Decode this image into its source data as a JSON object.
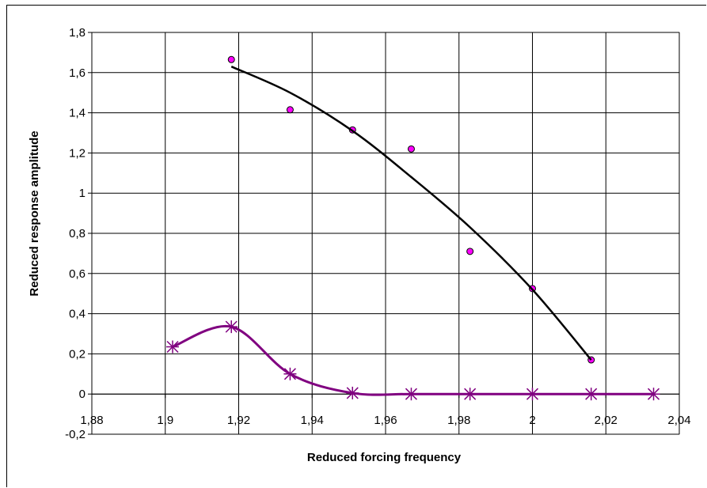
{
  "chart_data": {
    "type": "scatter",
    "xlabel": "Reduced forcing frequency",
    "ylabel": "Reduced response amplitude",
    "xlim": [
      1.88,
      2.04
    ],
    "ylim": [
      -0.2,
      1.8
    ],
    "xticks": [
      1.88,
      1.9,
      1.92,
      1.94,
      1.96,
      1.98,
      2,
      2.02,
      2.04
    ],
    "yticks": [
      -0.2,
      0,
      0.2,
      0.4,
      0.6,
      0.8,
      1,
      1.2,
      1.4,
      1.6,
      1.8
    ],
    "xtick_labels": [
      "1,88",
      "1,9",
      "1,92",
      "1,94",
      "1,96",
      "1,98",
      "2",
      "2,02",
      "2,04"
    ],
    "ytick_labels": [
      "-0,2",
      "0",
      "0,2",
      "0,4",
      "0,6",
      "0,8",
      "1",
      "1,2",
      "1,4",
      "1,6",
      "1,8"
    ],
    "grid": true,
    "legend": "none",
    "series": [
      {
        "marker": "circle",
        "color": "#ff00ff",
        "x": [
          1.918,
          1.934,
          1.951,
          1.967,
          1.983,
          2.0,
          2.016
        ],
        "y": [
          1.665,
          1.415,
          1.315,
          1.22,
          0.71,
          0.525,
          0.17
        ]
      },
      {
        "marker": "none",
        "line": "smooth",
        "color": "#000000",
        "x": [
          1.918,
          1.934,
          1.951,
          1.967,
          1.983,
          2.0,
          2.016
        ],
        "y": [
          1.63,
          1.5,
          1.31,
          1.08,
          0.83,
          0.52,
          0.17
        ]
      },
      {
        "marker": "asterisk",
        "line": "smooth",
        "color": "#800080",
        "x": [
          1.902,
          1.918,
          1.934,
          1.951,
          1.967,
          1.983,
          2.0,
          2.016,
          2.033
        ],
        "y": [
          0.235,
          0.335,
          0.1,
          0.005,
          0.0,
          0.0,
          0.0,
          0.0,
          0.0
        ]
      }
    ]
  }
}
